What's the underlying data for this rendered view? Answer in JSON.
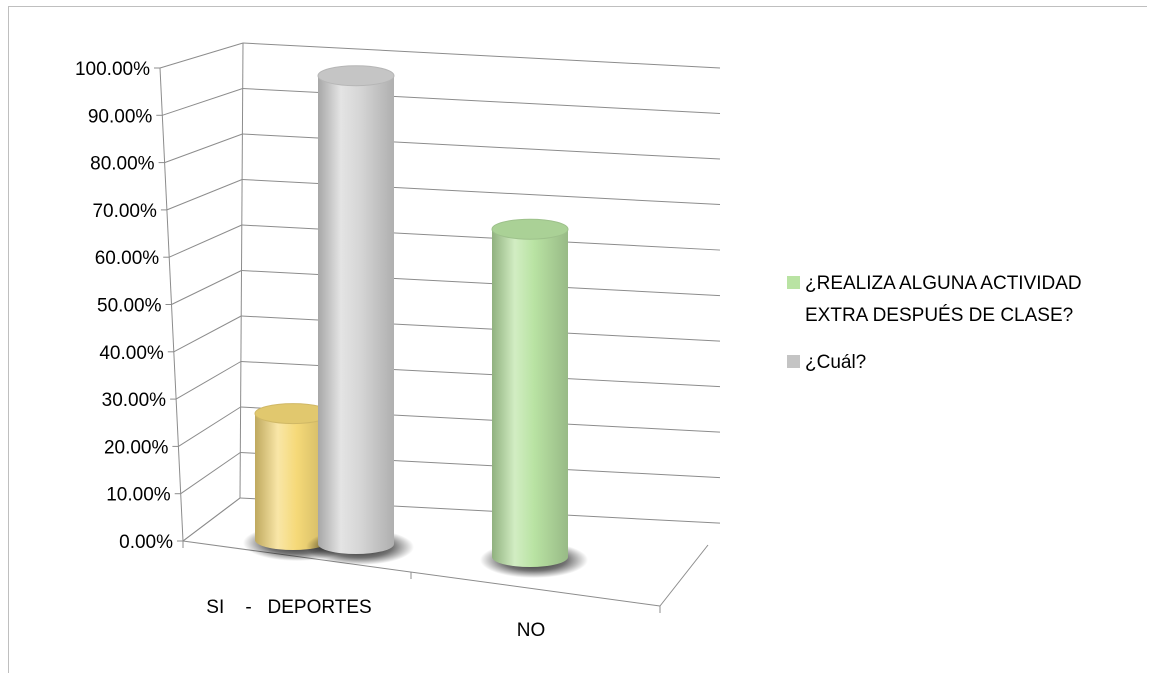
{
  "chart_data": {
    "type": "bar",
    "style": "3d-cylinder",
    "categories": [
      "SI    -   DEPORTES",
      "NO"
    ],
    "series": [
      {
        "name": "¿REALIZA ALGUNA ACTIVIDAD EXTRA DESPUÉS DE CLASE?",
        "legend_lines": [
          "¿REALIZA ALGUNA ACTIVIDAD",
          "EXTRA DESPUÉS DE CLASE?"
        ],
        "values": [
          0.27,
          0.7
        ],
        "point_colors": [
          "#f5d978",
          "#b9e3a3"
        ],
        "legend_color": "#b9e3a3"
      },
      {
        "name": "¿Cuál?",
        "legend_lines": [
          "¿Cuál?"
        ],
        "values": [
          1.0,
          null
        ],
        "point_colors": [
          "#d6d6d6",
          null
        ],
        "legend_color": "#c4c4c4"
      }
    ],
    "ylim": [
      0,
      1
    ],
    "yticks": [
      "0.00%",
      "10.00%",
      "20.00%",
      "30.00%",
      "40.00%",
      "50.00%",
      "60.00%",
      "70.00%",
      "80.00%",
      "90.00%",
      "100.00%"
    ],
    "grid": true,
    "legend_position": "right"
  }
}
